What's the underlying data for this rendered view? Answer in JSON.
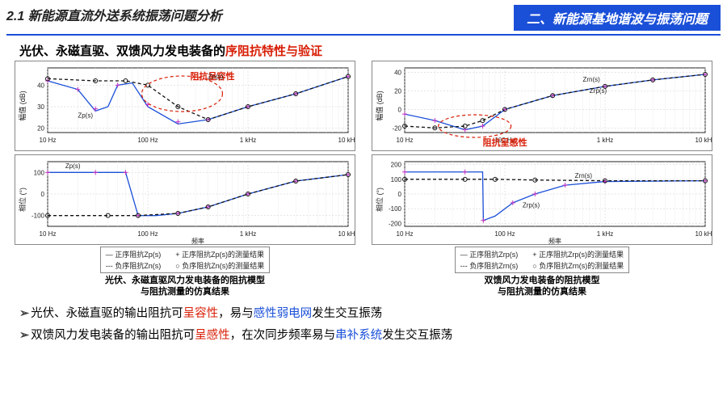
{
  "header": {
    "section": "2.1 新能源直流外送系统振荡问题分析",
    "badge": "二、新能源基地谐波与振荡问题"
  },
  "subtitle": {
    "prefix": "光伏、永磁直驱、双馈风力发电装备的",
    "highlight": "序阻抗特性与验证"
  },
  "colors": {
    "accent_blue": "#1a4fd8",
    "accent_red": "#d81e06",
    "line_blue": "#1a4fd8",
    "line_black": "#111111",
    "marker_magenta": "#c030c0",
    "marker_open": "#111111",
    "grid": "#cccccc",
    "bg": "#ffffff"
  },
  "chart_left": {
    "caption_line1": "光伏、永磁直驱风力发电装备的阻抗模型",
    "caption_line2": "与阻抗测量的仿真结果",
    "callout": "阻抗呈容性",
    "xlabel": "频率",
    "mag": {
      "ylabel": "幅值 (dB)",
      "xticks": [
        "10 Hz",
        "100 Hz",
        "1 kHz",
        "10 kHz"
      ],
      "yticks": [
        20,
        30,
        40
      ],
      "ylim": [
        18,
        48
      ],
      "series": {
        "Zp_recon": {
          "label": "Zp(s)",
          "color": "#1a4fd8",
          "dash": "",
          "pts": [
            [
              10,
              42
            ],
            [
              20,
              38
            ],
            [
              30,
              28
            ],
            [
              40,
              30
            ],
            [
              50,
              40
            ],
            [
              70,
              41
            ],
            [
              100,
              30
            ],
            [
              200,
              22
            ],
            [
              400,
              24
            ],
            [
              1000,
              30
            ],
            [
              3000,
              36
            ],
            [
              10000,
              44
            ]
          ]
        },
        "Zn_recon": {
          "label": "Zn(s)",
          "color": "#111111",
          "dash": "4 3",
          "pts": [
            [
              10,
              43
            ],
            [
              30,
              42
            ],
            [
              60,
              42
            ],
            [
              100,
              40
            ],
            [
              200,
              30
            ],
            [
              400,
              24
            ],
            [
              1000,
              30
            ],
            [
              3000,
              36
            ],
            [
              10000,
              44
            ]
          ]
        },
        "Zp_meas": {
          "marker": "+",
          "color": "#c030c0",
          "pts": [
            [
              10,
              42
            ],
            [
              20,
              38
            ],
            [
              30,
              29
            ],
            [
              50,
              40
            ],
            [
              100,
              31
            ],
            [
              200,
              23
            ],
            [
              400,
              24
            ],
            [
              1000,
              30
            ],
            [
              3000,
              36
            ],
            [
              10000,
              44
            ]
          ]
        },
        "Zn_meas": {
          "marker": "o",
          "color": "#111111",
          "pts": [
            [
              10,
              43
            ],
            [
              30,
              42
            ],
            [
              60,
              42
            ],
            [
              100,
              40
            ],
            [
              200,
              30
            ],
            [
              400,
              24
            ],
            [
              1000,
              30
            ],
            [
              3000,
              36
            ],
            [
              10000,
              44
            ]
          ]
        }
      }
    },
    "phase": {
      "ylabel": "相位 (°)",
      "xticks": [
        "10 Hz",
        "100 Hz",
        "1 kHz",
        "10 kHz"
      ],
      "yticks": [
        -100,
        0,
        100
      ],
      "ylim": [
        -150,
        150
      ],
      "series": {
        "Zp_recon": {
          "color": "#1a4fd8",
          "dash": "",
          "pts": [
            [
              10,
              100
            ],
            [
              30,
              100
            ],
            [
              60,
              100
            ],
            [
              80,
              -100
            ],
            [
              120,
              -100
            ],
            [
              200,
              -90
            ],
            [
              400,
              -60
            ],
            [
              1000,
              0
            ],
            [
              3000,
              60
            ],
            [
              10000,
              90
            ]
          ]
        },
        "Zn_recon": {
          "color": "#111111",
          "dash": "4 3",
          "pts": [
            [
              10,
              -100
            ],
            [
              40,
              -100
            ],
            [
              80,
              -100
            ],
            [
              200,
              -90
            ],
            [
              400,
              -60
            ],
            [
              1000,
              0
            ],
            [
              3000,
              60
            ],
            [
              10000,
              90
            ]
          ]
        },
        "Zp_meas": {
          "marker": "+",
          "color": "#c030c0",
          "pts": [
            [
              10,
              100
            ],
            [
              30,
              100
            ],
            [
              60,
              100
            ],
            [
              80,
              -100
            ],
            [
              200,
              -90
            ],
            [
              400,
              -60
            ],
            [
              1000,
              0
            ],
            [
              3000,
              60
            ],
            [
              10000,
              90
            ]
          ]
        },
        "Zn_meas": {
          "marker": "o",
          "color": "#111111",
          "pts": [
            [
              10,
              -100
            ],
            [
              40,
              -100
            ],
            [
              80,
              -100
            ],
            [
              200,
              -90
            ],
            [
              400,
              -60
            ],
            [
              1000,
              0
            ],
            [
              3000,
              60
            ],
            [
              10000,
              90
            ]
          ]
        }
      },
      "annot": "Zp(s)"
    },
    "legend": {
      "col1": [
        "正序阻抗Zp(s)",
        "负序阻抗Zn(s)"
      ],
      "col2": [
        "+  正序阻抗Zp(s)的测量结果",
        "○  负序阻抗Zn(s)的测量结果"
      ]
    }
  },
  "chart_right": {
    "caption_line1": "双馈风力发电装备的阻抗模型",
    "caption_line2": "与阻抗测量的仿真结果",
    "callout": "阻抗呈感性",
    "xlabel": "频率",
    "mag": {
      "ylabel": "幅值 (dB)",
      "xticks": [
        "10 Hz",
        "100 Hz",
        "1 kHz",
        "10 kHz"
      ],
      "yticks": [
        -20,
        0,
        20,
        40
      ],
      "ylim": [
        -25,
        45
      ],
      "series": {
        "Zrp_recon": {
          "label": "Zrp(s)",
          "color": "#1a4fd8",
          "dash": "",
          "pts": [
            [
              10,
              -5
            ],
            [
              20,
              -12
            ],
            [
              40,
              -22
            ],
            [
              60,
              -18
            ],
            [
              100,
              0
            ],
            [
              300,
              15
            ],
            [
              1000,
              25
            ],
            [
              3000,
              32
            ],
            [
              10000,
              38
            ]
          ]
        },
        "Zrn_recon": {
          "label": "Zrn(s)",
          "color": "#111111",
          "dash": "4 3",
          "pts": [
            [
              10,
              -18
            ],
            [
              20,
              -20
            ],
            [
              40,
              -18
            ],
            [
              60,
              -12
            ],
            [
              100,
              0
            ],
            [
              300,
              15
            ],
            [
              1000,
              25
            ],
            [
              3000,
              32
            ],
            [
              10000,
              38
            ]
          ]
        },
        "Zrp_meas": {
          "marker": "+",
          "color": "#c030c0",
          "pts": [
            [
              10,
              -5
            ],
            [
              20,
              -12
            ],
            [
              40,
              -22
            ],
            [
              60,
              -18
            ],
            [
              100,
              0
            ],
            [
              300,
              15
            ],
            [
              1000,
              25
            ],
            [
              3000,
              32
            ],
            [
              10000,
              38
            ]
          ]
        },
        "Zrn_meas": {
          "marker": "o",
          "color": "#111111",
          "pts": [
            [
              10,
              -18
            ],
            [
              20,
              -20
            ],
            [
              40,
              -18
            ],
            [
              60,
              -12
            ],
            [
              100,
              0
            ],
            [
              300,
              15
            ],
            [
              1000,
              25
            ],
            [
              3000,
              32
            ],
            [
              10000,
              38
            ]
          ]
        }
      },
      "annot_top": "Zrn(s)",
      "annot_bot": "Zrp(s)"
    },
    "phase": {
      "ylabel": "相位 (°)",
      "xticks": [
        "10 Hz",
        "100 Hz",
        "1 kHz",
        "10 kHz"
      ],
      "yticks": [
        -200,
        -100,
        0,
        100,
        200
      ],
      "ylim": [
        -220,
        220
      ],
      "series": {
        "Zrp_recon": {
          "color": "#1a4fd8",
          "dash": "",
          "pts": [
            [
              10,
              150
            ],
            [
              40,
              150
            ],
            [
              60,
              150
            ],
            [
              61,
              -180
            ],
            [
              80,
              -150
            ],
            [
              120,
              -60
            ],
            [
              200,
              0
            ],
            [
              400,
              60
            ],
            [
              1000,
              85
            ],
            [
              10000,
              90
            ]
          ]
        },
        "Zrn_recon": {
          "color": "#111111",
          "dash": "4 3",
          "pts": [
            [
              10,
              100
            ],
            [
              40,
              100
            ],
            [
              80,
              100
            ],
            [
              200,
              95
            ],
            [
              1000,
              90
            ],
            [
              10000,
              90
            ]
          ]
        },
        "Zrp_meas": {
          "marker": "+",
          "color": "#c030c0",
          "pts": [
            [
              10,
              150
            ],
            [
              40,
              150
            ],
            [
              61,
              -180
            ],
            [
              120,
              -60
            ],
            [
              200,
              0
            ],
            [
              400,
              60
            ],
            [
              1000,
              85
            ],
            [
              10000,
              90
            ]
          ]
        },
        "Zrn_meas": {
          "marker": "o",
          "color": "#111111",
          "pts": [
            [
              10,
              100
            ],
            [
              40,
              100
            ],
            [
              80,
              100
            ],
            [
              200,
              95
            ],
            [
              1000,
              90
            ],
            [
              10000,
              90
            ]
          ]
        }
      },
      "annot_top": "Zrn(s)",
      "annot_bot": "Zrp(s)"
    },
    "legend": {
      "col1": [
        "正序阻抗Zrp(s)",
        "负序阻抗Zrn(s)"
      ],
      "col2": [
        "+  正序阻抗Zrp(s)的测量结果",
        "○  负序阻抗Zrn(s)的测量结果"
      ]
    }
  },
  "bullets": [
    {
      "pre": "光伏、永磁直驱的输出阻抗可",
      "r1": "呈容性",
      "mid": "，易与",
      "b1": "感性弱电网",
      "post": "发生交互振荡"
    },
    {
      "pre": "双馈风力发电装备的输出阻抗可",
      "r1": "呈感性",
      "mid": "，在次同步频率易与",
      "b1": "串补系统",
      "post": "发生交互振荡"
    }
  ]
}
